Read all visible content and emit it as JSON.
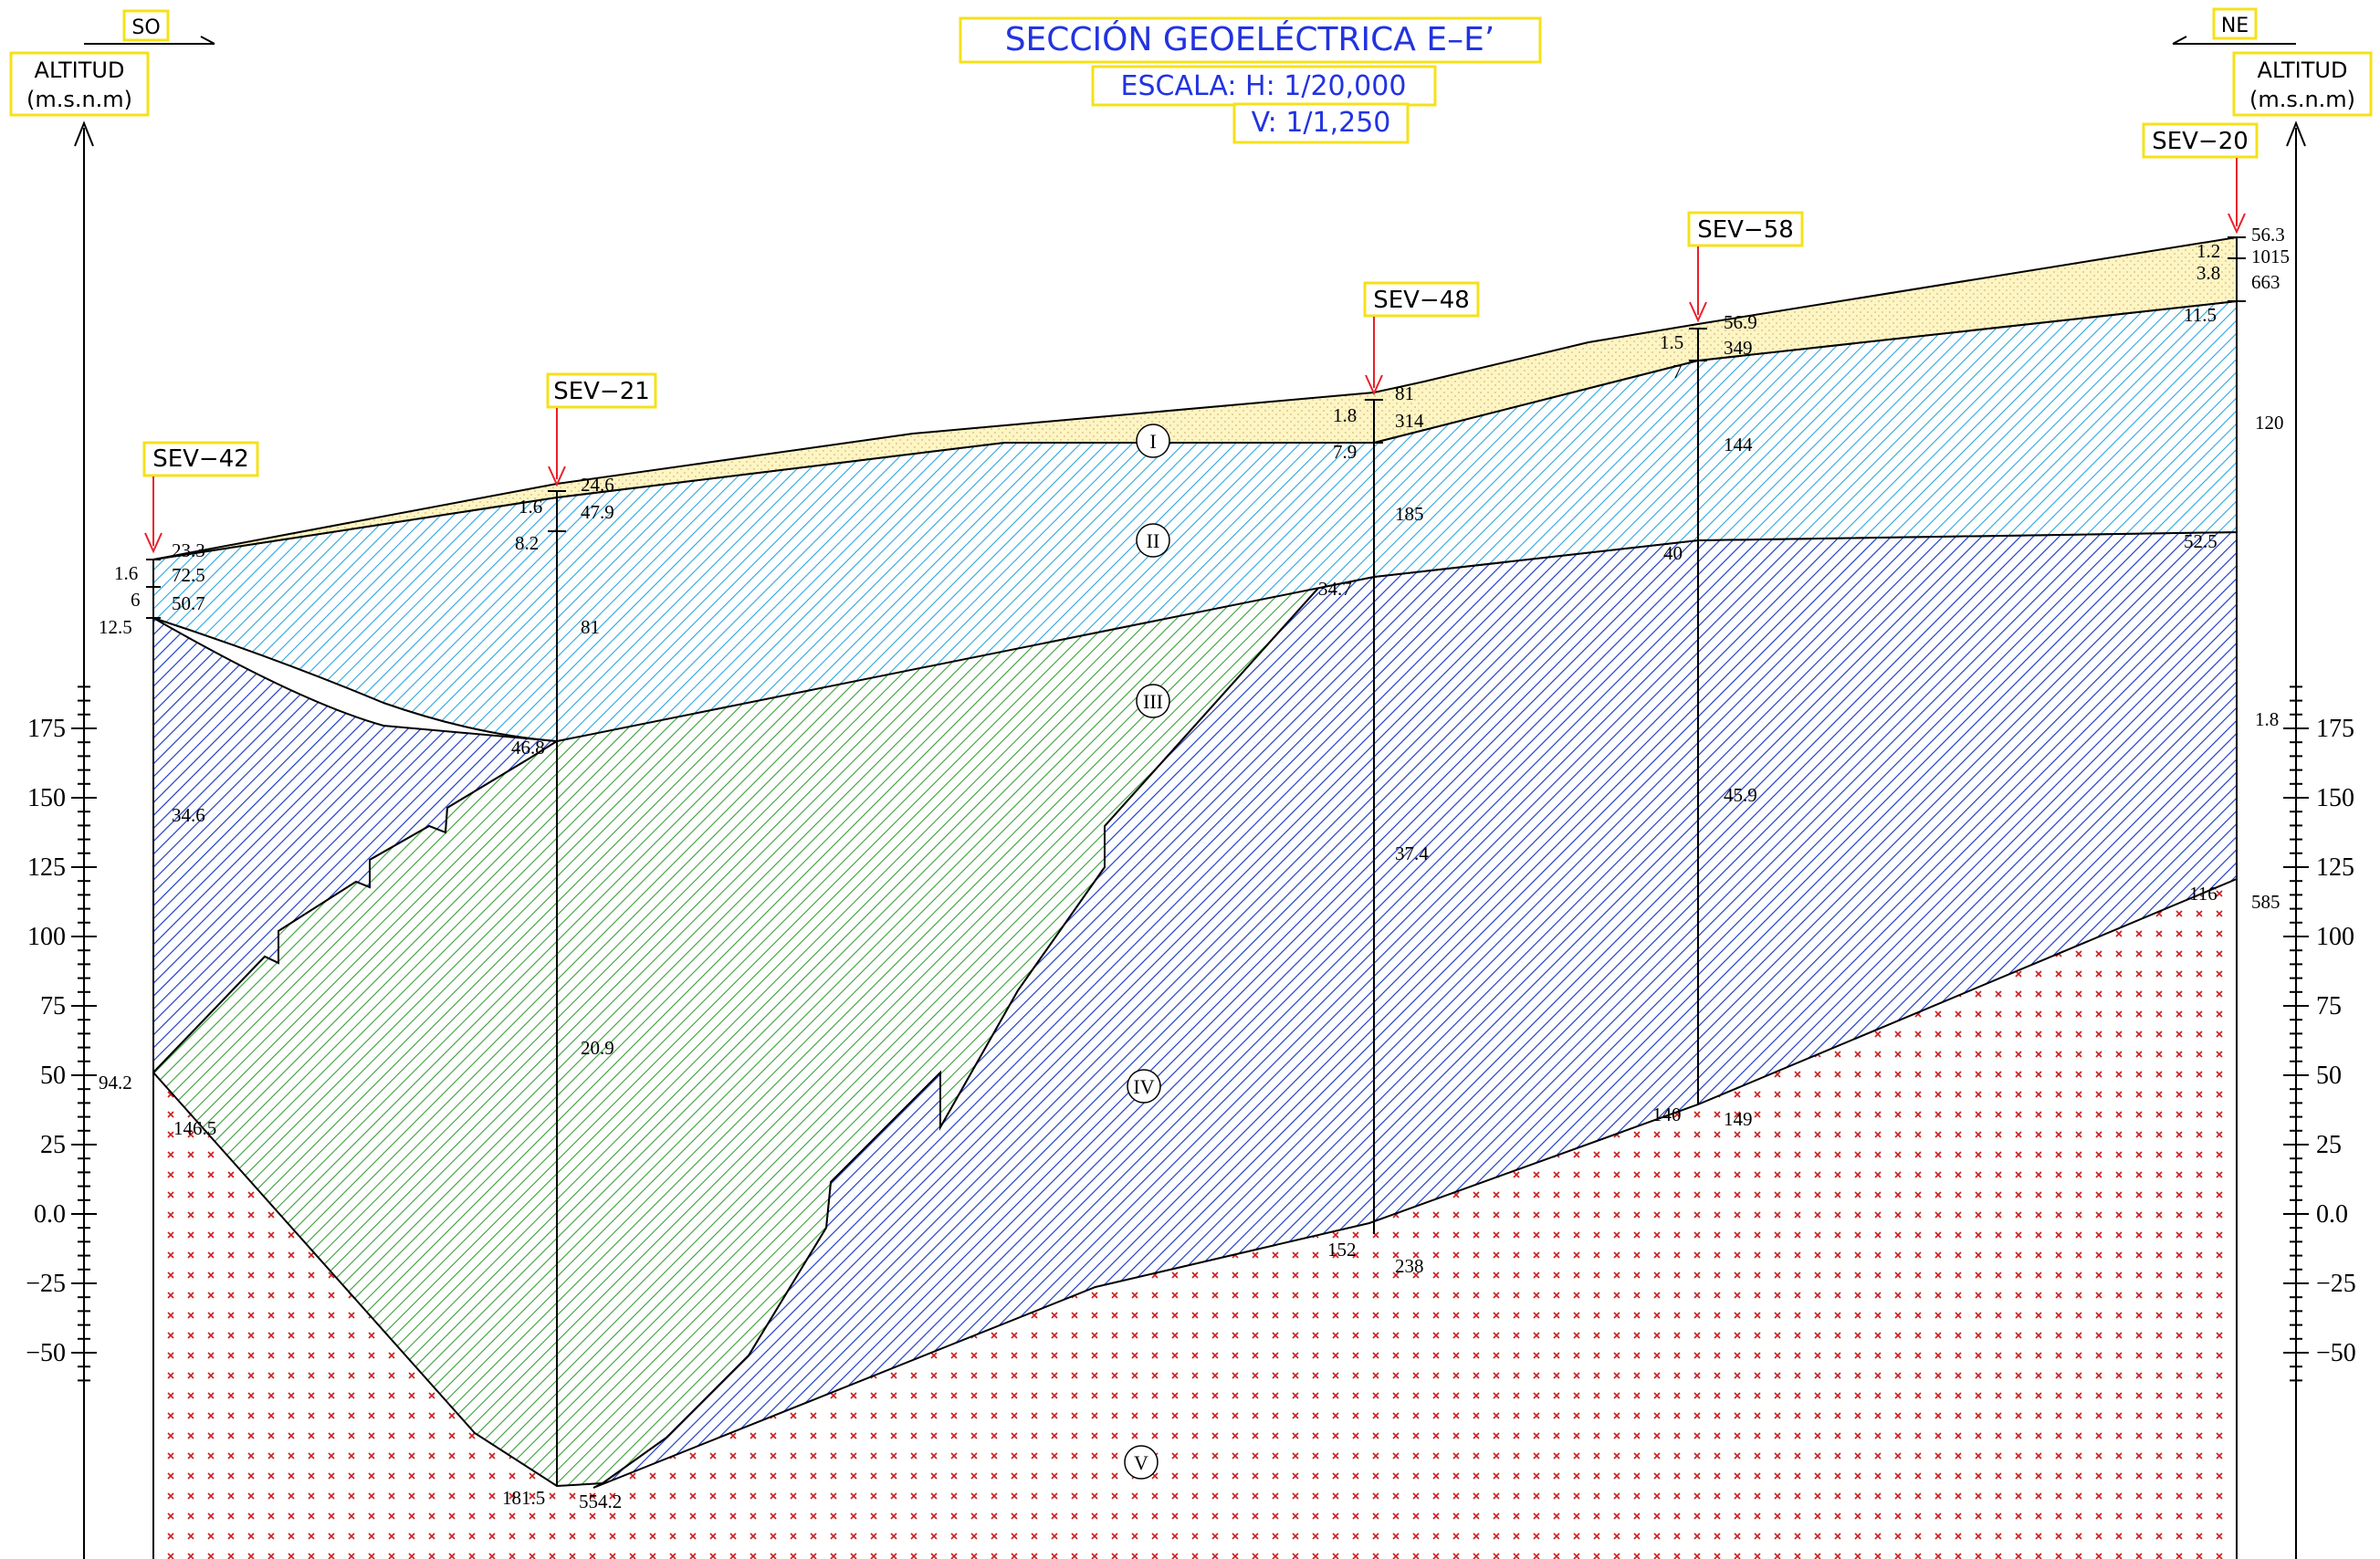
{
  "header": {
    "title": "SECCIÓN GEOELÉCTRICA E–E’",
    "scale_h": "ESCALA:  H:  1/20,000",
    "scale_v": "V:  1/1,250"
  },
  "orientation": {
    "left": "SO",
    "right": "NE"
  },
  "axis": {
    "label_line1": "ALTITUD",
    "label_line2": "(m.s.n.m)",
    "ticks": [
      {
        "value": 175,
        "label": "175"
      },
      {
        "value": 150,
        "label": "150"
      },
      {
        "value": 125,
        "label": "125"
      },
      {
        "value": 100,
        "label": "100"
      },
      {
        "value": 75,
        "label": "75"
      },
      {
        "value": 50,
        "label": "50"
      },
      {
        "value": 25,
        "label": "25"
      },
      {
        "value": 0,
        "label": "0.0"
      },
      {
        "value": -25,
        "label": "−25"
      },
      {
        "value": -50,
        "label": "−50"
      }
    ]
  },
  "soundings": [
    {
      "name": "SEV-42",
      "label": "SEV−42"
    },
    {
      "name": "SEV-21",
      "label": "SEV−21"
    },
    {
      "name": "SEV-48",
      "label": "SEV−48"
    },
    {
      "name": "SEV-58",
      "label": "SEV−58"
    },
    {
      "name": "SEV-20",
      "label": "SEV−20"
    }
  ],
  "units": [
    "I",
    "II",
    "III",
    "IV",
    "V"
  ],
  "values": [
    "23.3",
    "1.6",
    "72.5",
    "6",
    "50.7",
    "12.5",
    "34.6",
    "94.2",
    "146.5",
    "24.6",
    "1.6",
    "47.9",
    "8.2",
    "81",
    "46.8",
    "20.9",
    "181.5",
    "554.2",
    "81",
    "1.8",
    "314",
    "7.9",
    "185",
    "34.7",
    "37.4",
    "152",
    "238",
    "56.9",
    "1.5",
    "349",
    "7",
    "144",
    "40",
    "45.9",
    "140",
    "149",
    "56.3",
    "1.2",
    "1015",
    "3.8",
    "663",
    "11.5",
    "120",
    "52.5",
    "1.8",
    "116",
    "585"
  ],
  "colors": {
    "unit_I_fill": "#fdf5c4",
    "unit_I_dots": "#d8b878",
    "unit_II_hatch": "#2aa6df",
    "unit_III_hatch": "#3a9e3a",
    "unit_IV_hatch": "#1f3ec8",
    "unit_V_cross": "#cc1f1f",
    "label_box": "#f5e11a",
    "title_text": "#2233e0",
    "arrow": "#e8202a"
  }
}
